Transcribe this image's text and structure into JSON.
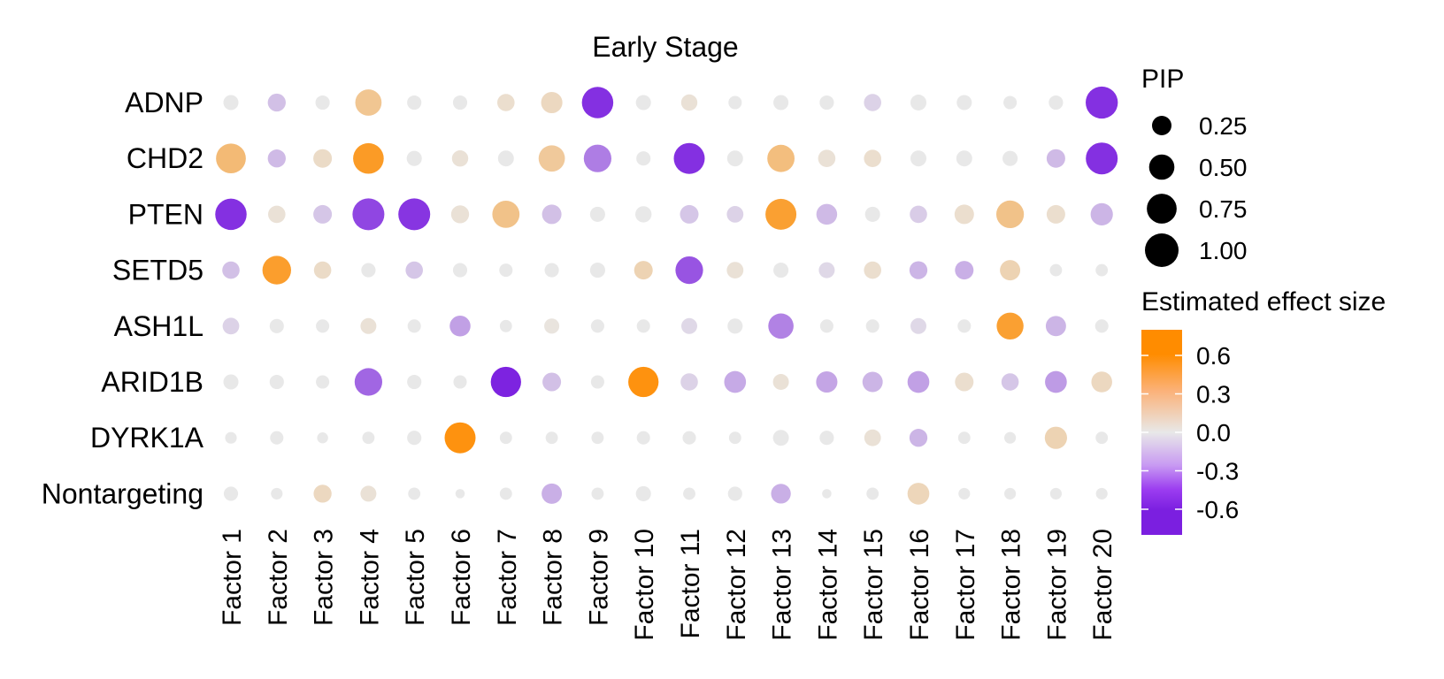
{
  "chart_data": {
    "type": "dot-plot",
    "title": "Early Stage",
    "genes": [
      "ADNP",
      "CHD2",
      "PTEN",
      "SETD5",
      "ASH1L",
      "ARID1B",
      "DYRK1A",
      "Nontargeting"
    ],
    "factors": [
      "Factor 1",
      "Factor 2",
      "Factor 3",
      "Factor 4",
      "Factor 5",
      "Factor 6",
      "Factor 7",
      "Factor 8",
      "Factor 9",
      "Factor 10",
      "Factor 11",
      "Factor 12",
      "Factor 13",
      "Factor 14",
      "Factor 15",
      "Factor 16",
      "Factor 17",
      "Factor 18",
      "Factor 19",
      "Factor 20"
    ],
    "pip": [
      [
        0.12,
        0.2,
        0.1,
        0.55,
        0.1,
        0.1,
        0.18,
        0.32,
        0.85,
        0.12,
        0.15,
        0.08,
        0.12,
        0.1,
        0.18,
        0.14,
        0.12,
        0.08,
        0.1,
        0.9
      ],
      [
        0.75,
        0.2,
        0.22,
        0.8,
        0.12,
        0.15,
        0.14,
        0.55,
        0.62,
        0.1,
        0.82,
        0.14,
        0.6,
        0.18,
        0.18,
        0.14,
        0.14,
        0.12,
        0.22,
        0.88
      ],
      [
        0.85,
        0.18,
        0.22,
        0.88,
        0.88,
        0.2,
        0.6,
        0.25,
        0.12,
        0.15,
        0.22,
        0.16,
        0.82,
        0.3,
        0.12,
        0.18,
        0.25,
        0.62,
        0.22,
        0.36
      ],
      [
        0.18,
        0.68,
        0.18,
        0.1,
        0.18,
        0.1,
        0.08,
        0.1,
        0.12,
        0.22,
        0.62,
        0.16,
        0.12,
        0.14,
        0.18,
        0.2,
        0.22,
        0.28,
        0.06,
        0.06
      ],
      [
        0.16,
        0.1,
        0.08,
        0.14,
        0.08,
        0.3,
        0.06,
        0.12,
        0.08,
        0.08,
        0.14,
        0.12,
        0.5,
        0.08,
        0.08,
        0.14,
        0.08,
        0.58,
        0.28,
        0.08
      ],
      [
        0.12,
        0.1,
        0.08,
        0.62,
        0.1,
        0.08,
        0.78,
        0.22,
        0.08,
        0.78,
        0.18,
        0.34,
        0.14,
        0.32,
        0.28,
        0.34,
        0.22,
        0.18,
        0.34,
        0.3
      ],
      [
        0.05,
        0.08,
        0.04,
        0.06,
        0.1,
        0.82,
        0.06,
        0.06,
        0.06,
        0.08,
        0.08,
        0.06,
        0.14,
        0.1,
        0.16,
        0.2,
        0.06,
        0.05,
        0.36,
        0.06
      ],
      [
        0.1,
        0.05,
        0.2,
        0.14,
        0.06,
        0.02,
        0.06,
        0.28,
        0.06,
        0.12,
        0.06,
        0.1,
        0.26,
        0.02,
        0.06,
        0.34,
        0.05,
        0.05,
        0.05,
        0.05
      ]
    ],
    "effect": [
      [
        0.0,
        -0.12,
        0.0,
        0.25,
        0.0,
        0.0,
        0.06,
        0.1,
        -0.72,
        0.0,
        0.04,
        0.0,
        0.0,
        0.0,
        -0.06,
        0.0,
        0.0,
        0.0,
        0.0,
        -0.72
      ],
      [
        0.35,
        -0.14,
        0.08,
        0.65,
        0.0,
        0.04,
        0.0,
        0.22,
        -0.38,
        0.0,
        -0.72,
        0.0,
        0.32,
        0.04,
        0.06,
        0.0,
        0.0,
        0.0,
        -0.14,
        -0.72
      ],
      [
        -0.72,
        0.04,
        -0.1,
        -0.62,
        -0.7,
        0.04,
        0.28,
        -0.12,
        0.0,
        0.0,
        -0.1,
        -0.06,
        0.6,
        -0.14,
        0.0,
        -0.08,
        0.06,
        0.28,
        0.06,
        -0.16
      ],
      [
        -0.12,
        0.62,
        0.08,
        0.0,
        -0.1,
        0.0,
        0.0,
        0.0,
        0.0,
        0.14,
        -0.56,
        0.04,
        0.0,
        -0.04,
        0.06,
        -0.16,
        -0.18,
        0.14,
        0.0,
        0.0
      ],
      [
        -0.06,
        0.0,
        0.0,
        0.04,
        0.0,
        -0.24,
        0.0,
        0.02,
        0.0,
        0.0,
        -0.04,
        0.0,
        -0.36,
        0.0,
        0.0,
        -0.04,
        0.0,
        0.6,
        -0.16,
        0.0
      ],
      [
        0.0,
        0.0,
        0.0,
        -0.48,
        0.0,
        0.0,
        -0.78,
        -0.12,
        0.0,
        0.74,
        -0.06,
        -0.2,
        0.04,
        -0.22,
        -0.16,
        -0.24,
        0.06,
        -0.1,
        -0.26,
        0.1
      ],
      [
        0.0,
        0.0,
        0.0,
        0.0,
        0.0,
        0.74,
        0.0,
        0.0,
        0.0,
        0.0,
        0.0,
        0.0,
        0.0,
        0.0,
        0.04,
        -0.16,
        0.0,
        0.0,
        0.14,
        0.0
      ],
      [
        0.0,
        0.0,
        0.1,
        0.04,
        0.0,
        0.0,
        0.0,
        -0.18,
        0.0,
        0.0,
        0.0,
        0.0,
        -0.18,
        0.0,
        0.0,
        0.12,
        0.0,
        0.0,
        0.0,
        0.0
      ]
    ],
    "size_legend": {
      "title": "PIP",
      "labels": [
        "0.25",
        "0.50",
        "0.75",
        "1.00"
      ],
      "values": [
        0.25,
        0.5,
        0.75,
        1.0
      ]
    },
    "color_legend": {
      "title": "Estimated effect size",
      "labels": [
        "0.6",
        "0.3",
        "0.0",
        "-0.3",
        "-0.6"
      ],
      "values": [
        0.6,
        0.3,
        0.0,
        -0.3,
        -0.6
      ],
      "range": [
        -0.8,
        0.8
      ]
    },
    "colors": {
      "high": "#ff8c00",
      "mid": "#e8e8e8",
      "low": "#7b1fe0"
    }
  }
}
